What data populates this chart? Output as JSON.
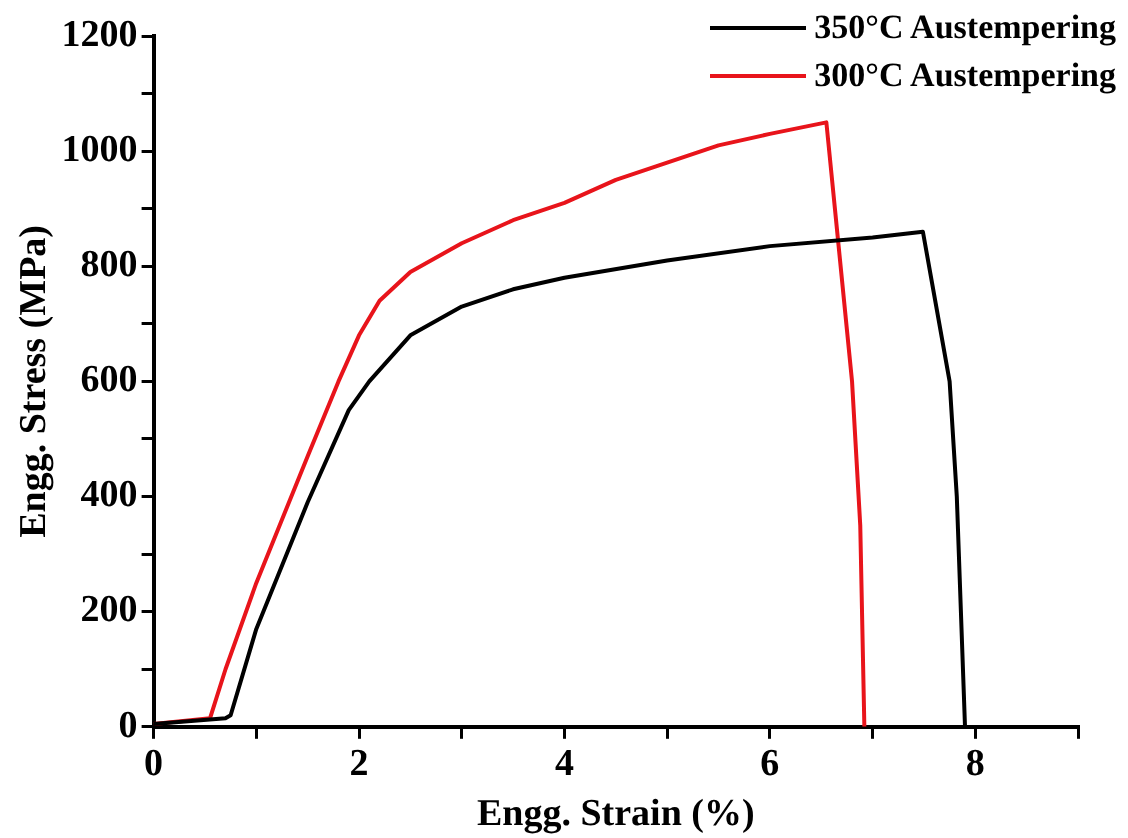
{
  "chart_data": {
    "type": "line",
    "xlabel": "Engg. Strain (%)",
    "ylabel": "Engg. Stress (MPa)",
    "xlim": [
      0,
      9
    ],
    "xticks": [
      0,
      {
        "value": 1,
        "label": null
      },
      2,
      {
        "value": 3,
        "label": null
      },
      4,
      {
        "value": 5,
        "label": null
      },
      6,
      {
        "value": 7,
        "label": null
      },
      8,
      {
        "value": 9,
        "label": null
      }
    ],
    "ylim": [
      0,
      1200
    ],
    "yticks": [
      0,
      {
        "value": 100,
        "label": null
      },
      200,
      {
        "value": 300,
        "label": null
      },
      400,
      {
        "value": 500,
        "label": null
      },
      600,
      {
        "value": 700,
        "label": null
      },
      800,
      {
        "value": 900,
        "label": null
      },
      1000,
      {
        "value": 1100,
        "label": null
      },
      1200
    ],
    "grid": false,
    "legend": "top right",
    "marker": "none",
    "line_style": "solid",
    "series": [
      {
        "name": "350°C Austempering",
        "color": "#000000",
        "x": [
          0,
          0.7,
          0.75,
          1,
          1.5,
          1.9,
          2.1,
          2.5,
          3,
          3.5,
          4,
          5,
          6,
          7,
          7.49,
          7.75,
          7.82,
          7.9
        ],
        "values": [
          5,
          15,
          20,
          170,
          390,
          550,
          600,
          680,
          730,
          760,
          780,
          810,
          835,
          850,
          860,
          600,
          400,
          0
        ]
      },
      {
        "name": "300°C Austempering",
        "color": "#e8141b",
        "x": [
          0,
          0.55,
          0.7,
          1,
          1.5,
          1.8,
          2,
          2.2,
          2.5,
          3,
          3.5,
          4,
          4.5,
          5,
          5.5,
          6,
          6.55,
          6.8,
          6.88,
          6.92
        ],
        "values": [
          5,
          15,
          100,
          250,
          470,
          600,
          680,
          740,
          790,
          840,
          880,
          910,
          950,
          980,
          1010,
          1030,
          1050,
          600,
          350,
          0
        ]
      }
    ]
  }
}
